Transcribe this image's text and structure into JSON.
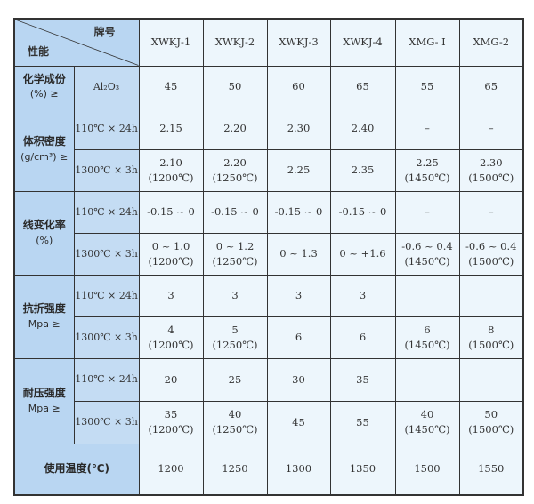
{
  "header": {
    "brand_label": "牌号",
    "property_label": "性能",
    "grades": [
      "XWKJ-1",
      "XWKJ-2",
      "XWKJ-3",
      "XWKJ-4",
      "XMG- Ⅰ",
      "XMG-2"
    ]
  },
  "chemical": {
    "label": "化学成份",
    "unit": "(%) ≥",
    "condition": "Al₂O₃",
    "values": [
      "45",
      "50",
      "60",
      "65",
      "55",
      "65"
    ]
  },
  "density": {
    "label": "体积密度",
    "unit": "(g/cm³) ≥",
    "rows": [
      {
        "condition": "110℃ × 24h",
        "values": [
          [
            "2.15"
          ],
          [
            "2.20"
          ],
          [
            "2.30"
          ],
          [
            "2.40"
          ],
          [
            "–"
          ],
          [
            "–"
          ]
        ]
      },
      {
        "condition": "1300℃ × 3h",
        "values": [
          [
            "2.10",
            "(1200℃)"
          ],
          [
            "2.20",
            "(1250℃)"
          ],
          [
            "2.25"
          ],
          [
            "2.35"
          ],
          [
            "2.25",
            "(1450℃)"
          ],
          [
            "2.30",
            "(1500℃)"
          ]
        ]
      }
    ]
  },
  "linear_change": {
    "label": "线变化率",
    "unit": "(%)",
    "rows": [
      {
        "condition": "110℃ × 24h",
        "values": [
          [
            "-0.15 ~ 0"
          ],
          [
            "-0.15 ~ 0"
          ],
          [
            "-0.15 ~ 0"
          ],
          [
            "-0.15 ~ 0"
          ],
          [
            "–"
          ],
          [
            "–"
          ]
        ]
      },
      {
        "condition": "1300℃ × 3h",
        "values": [
          [
            "0 ~ 1.0",
            "(1200℃)"
          ],
          [
            "0 ~ 1.2",
            "(1250℃)"
          ],
          [
            "0 ~ 1.3"
          ],
          [
            "0 ~ +1.6"
          ],
          [
            "-0.6 ~ 0.4",
            "(1450℃)"
          ],
          [
            "-0.6 ~ 0.4",
            "(1500℃)"
          ]
        ]
      }
    ]
  },
  "bending_strength": {
    "label": "抗折强度",
    "unit": "Mpa ≥",
    "rows": [
      {
        "condition": "110℃ × 24h",
        "values": [
          [
            "3"
          ],
          [
            "3"
          ],
          [
            "3"
          ],
          [
            "3"
          ],
          [
            ""
          ],
          [
            ""
          ]
        ]
      },
      {
        "condition": "1300℃ × 3h",
        "values": [
          [
            "4",
            "(1200℃)"
          ],
          [
            "5",
            "(1250℃)"
          ],
          [
            "6"
          ],
          [
            "6"
          ],
          [
            "6",
            "(1450℃)"
          ],
          [
            "8",
            "(1500℃)"
          ]
        ]
      }
    ]
  },
  "crushing_strength": {
    "label": "耐压强度",
    "unit": "Mpa ≥",
    "rows": [
      {
        "condition": "110℃ × 24h",
        "values": [
          [
            "20"
          ],
          [
            "25"
          ],
          [
            "30"
          ],
          [
            "35"
          ],
          [
            ""
          ],
          [
            ""
          ]
        ]
      },
      {
        "condition": "1300℃ × 3h",
        "values": [
          [
            "35",
            "(1200℃)"
          ],
          [
            "40",
            "(1250℃)"
          ],
          [
            "45"
          ],
          [
            "55"
          ],
          [
            "40",
            "(1450℃)"
          ],
          [
            "50",
            "(1500℃)"
          ]
        ]
      }
    ]
  },
  "service_temp": {
    "label": "使用温度(℃)",
    "values": [
      "1200",
      "1250",
      "1300",
      "1350",
      "1500",
      "1550"
    ]
  },
  "colors": {
    "header_blue": "#b9d6f2",
    "cell_pale": "#edf6fc",
    "border": "#333333"
  }
}
